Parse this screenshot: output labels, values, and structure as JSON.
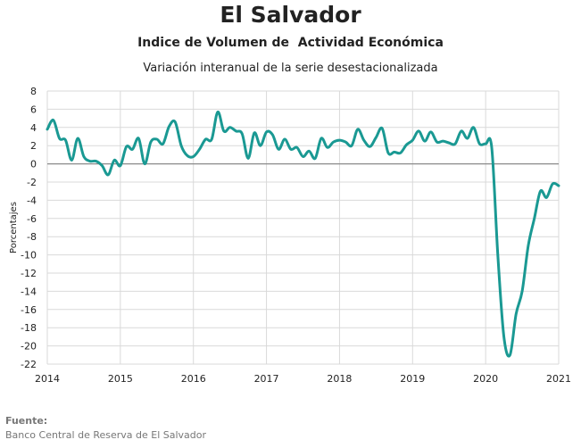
{
  "header": {
    "title": "El Salvador",
    "subtitle": "Indice de Volumen de  Actividad Económica",
    "subtitle2": "Variación interanual de la serie desestacionalizada"
  },
  "source": {
    "label": "Fuente:",
    "text": "Banco Central de Reserva de El Salvador"
  },
  "chart_data": {
    "type": "line",
    "title": "El Salvador",
    "subtitle": "Indice de Volumen de  Actividad Económica",
    "ylabel": "Porcentajes",
    "xlabel": "",
    "ylim": [
      -22,
      8
    ],
    "xlim": [
      "2014-01",
      "2021-01"
    ],
    "yticks": [
      8,
      6,
      4,
      2,
      0,
      -2,
      -4,
      -6,
      -8,
      -10,
      -12,
      -14,
      -16,
      -18,
      -20,
      -22
    ],
    "xticks": [
      "2014",
      "2015",
      "2016",
      "2017",
      "2018",
      "2019",
      "2020",
      "2021"
    ],
    "grid": true,
    "line_color": "#1a9993",
    "series": [
      {
        "name": "",
        "x": [
          "2014-01",
          "2014-02",
          "2014-03",
          "2014-04",
          "2014-05",
          "2014-06",
          "2014-07",
          "2014-08",
          "2014-09",
          "2014-10",
          "2014-11",
          "2014-12",
          "2015-01",
          "2015-02",
          "2015-03",
          "2015-04",
          "2015-05",
          "2015-06",
          "2015-07",
          "2015-08",
          "2015-09",
          "2015-10",
          "2015-11",
          "2015-12",
          "2016-01",
          "2016-02",
          "2016-03",
          "2016-04",
          "2016-05",
          "2016-06",
          "2016-07",
          "2016-08",
          "2016-09",
          "2016-10",
          "2016-11",
          "2016-12",
          "2017-01",
          "2017-02",
          "2017-03",
          "2017-04",
          "2017-05",
          "2017-06",
          "2017-07",
          "2017-08",
          "2017-09",
          "2017-10",
          "2017-11",
          "2017-12",
          "2018-01",
          "2018-02",
          "2018-03",
          "2018-04",
          "2018-05",
          "2018-06",
          "2018-07",
          "2018-08",
          "2018-09",
          "2018-10",
          "2018-11",
          "2018-12",
          "2019-01",
          "2019-02",
          "2019-03",
          "2019-04",
          "2019-05",
          "2019-06",
          "2019-07",
          "2019-08",
          "2019-09",
          "2019-10",
          "2019-11",
          "2019-12",
          "2020-01",
          "2020-02",
          "2020-03",
          "2020-04",
          "2020-05",
          "2020-06",
          "2020-07",
          "2020-08",
          "2020-09",
          "2020-10",
          "2020-11",
          "2020-12",
          "2021-01"
        ],
        "values": [
          3.8,
          4.8,
          2.8,
          2.6,
          0.4,
          2.8,
          0.8,
          0.3,
          0.3,
          -0.2,
          -1.2,
          0.4,
          -0.2,
          1.9,
          1.6,
          2.8,
          0.0,
          2.4,
          2.7,
          2.2,
          4.1,
          4.6,
          2.0,
          0.9,
          0.8,
          1.6,
          2.7,
          2.7,
          5.7,
          3.6,
          4.0,
          3.6,
          3.3,
          0.6,
          3.4,
          2.0,
          3.5,
          3.2,
          1.6,
          2.7,
          1.6,
          1.8,
          0.8,
          1.4,
          0.6,
          2.8,
          1.8,
          2.4,
          2.6,
          2.4,
          2.0,
          3.8,
          2.6,
          1.9,
          2.9,
          3.9,
          1.2,
          1.3,
          1.2,
          2.1,
          2.6,
          3.6,
          2.5,
          3.5,
          2.4,
          2.5,
          2.3,
          2.2,
          3.6,
          2.8,
          4.0,
          2.2,
          2.2,
          1.8,
          -10.0,
          -19.0,
          -21.0,
          -16.5,
          -14.0,
          -9.0,
          -6.0,
          -3.0,
          -3.7,
          -2.2,
          -2.4
        ]
      }
    ]
  }
}
